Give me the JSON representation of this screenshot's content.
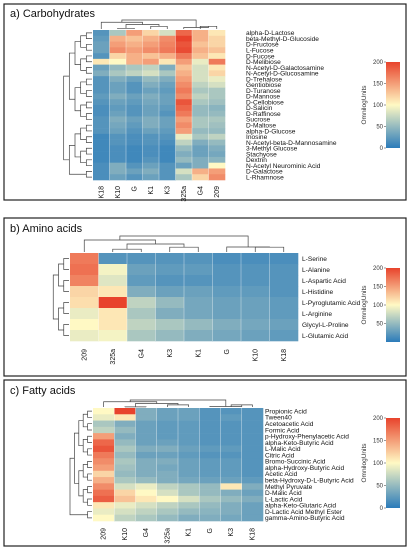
{
  "colors": {
    "low": "#2b7bba",
    "mid": "#fff9c4",
    "high": "#e8432c",
    "panel_border": "#222222",
    "dendrogram": "#444444"
  },
  "chart_data": [
    {
      "type": "heatmap",
      "title": "a) Carbohydrates",
      "legend_title": "OmnilogUnits",
      "legend_ticks": [
        "0",
        "50",
        "100",
        "150",
        "200"
      ],
      "value_range": [
        0,
        200
      ],
      "columns": [
        "K18",
        "K10",
        "G",
        "K1",
        "K3",
        "325a",
        "G4",
        "209"
      ],
      "rows": [
        "alpha-D-Lactose",
        "beta-Methyl-D-Glucoside",
        "D-Fructose",
        "L-Fucose",
        "D-Fucose",
        "D-Melibiose",
        "N-Acetyl-D-Galactosamine",
        "N-Acetyl-D-Glucosamine",
        "D-Trehalose",
        "Gentiobiose",
        "D-Turanose",
        "D-Mannose",
        "D-Cellobiose",
        "D-Salicin",
        "D-Raffinose",
        "Sucrose",
        "D-Maltose",
        "alpha-D-Glucose",
        "Inosine",
        "N-Acetyl-beta-D-Mannosamine",
        "3-Methyl Glucose",
        "Stachyose",
        "Dextrin",
        "N-Acetyl Neurominic Acid",
        "D-Galactose",
        "L-Rhamnose"
      ],
      "values": [
        [
          20,
          60,
          150,
          120,
          80,
          180,
          140,
          110
        ],
        [
          25,
          140,
          130,
          140,
          160,
          200,
          140,
          120
        ],
        [
          30,
          150,
          140,
          150,
          165,
          190,
          130,
          120
        ],
        [
          30,
          160,
          150,
          160,
          170,
          195,
          140,
          130
        ],
        [
          20,
          120,
          140,
          130,
          140,
          170,
          130,
          110
        ],
        [
          110,
          100,
          140,
          150,
          110,
          150,
          90,
          170
        ],
        [
          30,
          50,
          60,
          70,
          40,
          130,
          80,
          110
        ],
        [
          40,
          60,
          70,
          80,
          60,
          140,
          80,
          120
        ],
        [
          20,
          40,
          30,
          50,
          40,
          150,
          80,
          90
        ],
        [
          20,
          30,
          20,
          40,
          30,
          160,
          70,
          80
        ],
        [
          20,
          30,
          20,
          30,
          25,
          170,
          60,
          60
        ],
        [
          25,
          40,
          30,
          40,
          30,
          160,
          70,
          60
        ],
        [
          20,
          30,
          25,
          35,
          30,
          190,
          60,
          55
        ],
        [
          15,
          25,
          20,
          30,
          25,
          180,
          50,
          45
        ],
        [
          15,
          30,
          20,
          30,
          20,
          170,
          50,
          50
        ],
        [
          20,
          40,
          30,
          40,
          30,
          150,
          60,
          60
        ],
        [
          20,
          35,
          25,
          40,
          30,
          160,
          60,
          55
        ],
        [
          20,
          30,
          20,
          30,
          25,
          150,
          50,
          50
        ],
        [
          10,
          20,
          15,
          20,
          20,
          90,
          60,
          70
        ],
        [
          10,
          20,
          15,
          20,
          15,
          70,
          40,
          50
        ],
        [
          10,
          15,
          10,
          15,
          10,
          50,
          30,
          40
        ],
        [
          10,
          15,
          10,
          15,
          10,
          40,
          30,
          35
        ],
        [
          10,
          15,
          10,
          20,
          10,
          50,
          40,
          45
        ],
        [
          15,
          40,
          20,
          30,
          20,
          30,
          40,
          100
        ],
        [
          15,
          40,
          30,
          40,
          20,
          80,
          140,
          150
        ],
        [
          15,
          30,
          20,
          30,
          20,
          60,
          120,
          160
        ]
      ]
    },
    {
      "type": "heatmap",
      "title": "b) Amino acids",
      "legend_title": "OmnilogUnits",
      "legend_ticks": [
        "50",
        "100",
        "150",
        "200"
      ],
      "value_range": [
        0,
        200
      ],
      "columns": [
        "209",
        "325a",
        "G4",
        "K3",
        "K1",
        "G",
        "K10",
        "K18"
      ],
      "rows": [
        "L-Serine",
        "L-Alanine",
        "L-Aspartic Acid",
        "L-Histidine",
        "L-Pyroglutamic Acid",
        "L-Arginine",
        "Glycyl-L-Proline",
        "L-Glutamic Acid"
      ],
      "values": [
        [
          170,
          20,
          20,
          20,
          20,
          15,
          15,
          15
        ],
        [
          175,
          95,
          30,
          25,
          25,
          20,
          20,
          20
        ],
        [
          165,
          85,
          25,
          20,
          20,
          20,
          20,
          20
        ],
        [
          120,
          110,
          40,
          30,
          30,
          25,
          25,
          20
        ],
        [
          115,
          200,
          70,
          50,
          35,
          30,
          30,
          25
        ],
        [
          90,
          110,
          60,
          40,
          35,
          30,
          30,
          25
        ],
        [
          100,
          110,
          70,
          60,
          50,
          40,
          35,
          30
        ],
        [
          90,
          95,
          60,
          50,
          40,
          35,
          30,
          25
        ]
      ]
    },
    {
      "type": "heatmap",
      "title": "c) Fatty acids",
      "legend_title": "OmnilogUnits",
      "legend_ticks": [
        "0",
        "50",
        "100",
        "150",
        "200"
      ],
      "value_range": [
        0,
        200
      ],
      "columns": [
        "209",
        "K10",
        "G4",
        "325a",
        "K1",
        "G",
        "K3",
        "K18"
      ],
      "rows": [
        "Propionic Acid",
        "Tween40",
        "Acetoacetic Acid",
        "Formic Acid",
        "p-Hydroxy-Phenylacetic Acid",
        "alpha-Keto-Butyric Acid",
        "L-Malic Acid",
        "Citric Acid",
        "Bromo-Succinic Acid",
        "alpha-Hydroxy-Butyric Acid",
        "Acetic Acid",
        "beta-Hydroxy-D-L-Butyric Acid",
        "Methyl Pyruvate",
        "D-Malic Acid",
        "L-Lactic Acid",
        "alpha-Keto-Glutaric Acid",
        "D-Lactic Acid Methyl Ester",
        "gamma-Amino-Butyric Acid"
      ],
      "values": [
        [
          100,
          200,
          40,
          30,
          30,
          20,
          20,
          20
        ],
        [
          90,
          110,
          40,
          30,
          30,
          20,
          25,
          20
        ],
        [
          60,
          40,
          30,
          25,
          25,
          20,
          20,
          20
        ],
        [
          70,
          50,
          30,
          25,
          25,
          20,
          20,
          20
        ],
        [
          150,
          40,
          30,
          25,
          25,
          20,
          20,
          20
        ],
        [
          180,
          50,
          30,
          30,
          25,
          20,
          20,
          20
        ],
        [
          190,
          60,
          40,
          40,
          30,
          25,
          25,
          20
        ],
        [
          170,
          50,
          30,
          30,
          25,
          20,
          20,
          20
        ],
        [
          160,
          60,
          40,
          40,
          30,
          25,
          25,
          20
        ],
        [
          150,
          55,
          40,
          35,
          30,
          25,
          25,
          20
        ],
        [
          120,
          50,
          40,
          40,
          30,
          25,
          25,
          20
        ],
        [
          140,
          60,
          50,
          40,
          35,
          30,
          30,
          25
        ],
        [
          160,
          80,
          90,
          70,
          60,
          50,
          110,
          40
        ],
        [
          175,
          120,
          100,
          80,
          60,
          50,
          40,
          30
        ],
        [
          185,
          130,
          110,
          100,
          80,
          60,
          50,
          40
        ],
        [
          110,
          90,
          80,
          70,
          60,
          50,
          40,
          30
        ],
        [
          90,
          80,
          70,
          60,
          50,
          45,
          40,
          30
        ],
        [
          100,
          70,
          60,
          50,
          40,
          40,
          35,
          30
        ]
      ]
    }
  ]
}
